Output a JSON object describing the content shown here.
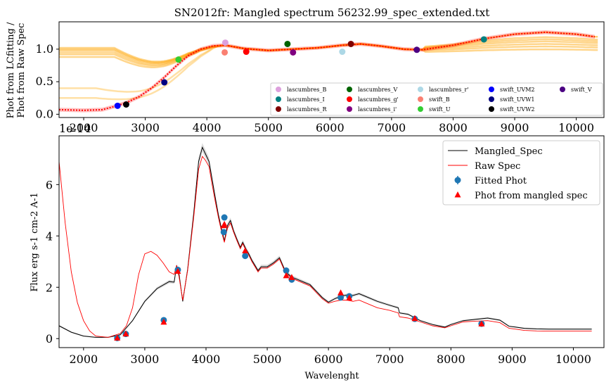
{
  "title": "SN2012fr: Mangled spectrum 56232.99_spec_extended.txt",
  "offset_text": "1e-14",
  "top_panel": {
    "ylabel_line1": "Phot from LCfitting /",
    "ylabel_line2": "Phot from Raw Spec",
    "yticks": [
      "0.0",
      "0.5",
      "1.0"
    ],
    "xticks": [
      "2000",
      "3000",
      "4000",
      "5000",
      "6000",
      "7000",
      "8000",
      "9000",
      "10000"
    ],
    "legend": [
      {
        "label": "lascumbres_B",
        "color": "#dda0dd"
      },
      {
        "label": "lascumbres_I",
        "color": "#008080"
      },
      {
        "label": "lascumbres_R",
        "color": "#800000"
      },
      {
        "label": "lascumbres_V",
        "color": "#006400"
      },
      {
        "label": "lascumbres_g'",
        "color": "#ff0000"
      },
      {
        "label": "lascumbres_i'",
        "color": "#800080"
      },
      {
        "label": "lascumbres_r'",
        "color": "#add8e6"
      },
      {
        "label": "swift_B",
        "color": "#fa8072"
      },
      {
        "label": "swift_U",
        "color": "#32cd32"
      },
      {
        "label": "swift_UVM2",
        "color": "#0000ff"
      },
      {
        "label": "swift_UVW1",
        "color": "#000080"
      },
      {
        "label": "swift_UVW2",
        "color": "#000000"
      },
      {
        "label": "swift_V",
        "color": "#4b0082"
      }
    ]
  },
  "bottom_panel": {
    "ylabel": "Flux erg s-1 cm-2 A-1",
    "xlabel": "Wavelenght",
    "yticks": [
      "0",
      "2",
      "4",
      "6"
    ],
    "xticks": [
      "2000",
      "3000",
      "4000",
      "5000",
      "6000",
      "7000",
      "8000",
      "9000",
      "10000"
    ],
    "legend": [
      {
        "label": "Mangled_Spec",
        "color": "#000000"
      },
      {
        "label": "Raw Spec",
        "color": "#ff0000"
      },
      {
        "label": "Fitted Phot",
        "color": "#1f77b4"
      },
      {
        "label": "Phot from mangled spec",
        "color": "#ff0000"
      }
    ]
  },
  "chart_data": [
    {
      "type": "scatter",
      "title": "SN2012fr: Mangled spectrum 56232.99_spec_extended.txt",
      "xlabel": "",
      "ylabel": "Phot from LCfitting / Phot from Raw Spec",
      "xlim": [
        1600,
        10450
      ],
      "ylim": [
        -0.05,
        1.42
      ],
      "grid": false,
      "legend_position": "lower-right",
      "series": [
        {
          "name": "swift_UVM2",
          "color": "#0000ff",
          "x": [
            2550
          ],
          "y": [
            0.13
          ]
        },
        {
          "name": "swift_UVW2",
          "color": "#000000",
          "x": [
            2690
          ],
          "y": [
            0.15
          ]
        },
        {
          "name": "swift_UVW1",
          "color": "#000080",
          "x": [
            3310
          ],
          "y": [
            0.49
          ]
        },
        {
          "name": "swift_U",
          "color": "#32cd32",
          "x": [
            3540
          ],
          "y": [
            0.84
          ]
        },
        {
          "name": "swift_B",
          "color": "#fa8072",
          "x": [
            4290
          ],
          "y": [
            0.95
          ]
        },
        {
          "name": "lascumbres_B",
          "color": "#dda0dd",
          "x": [
            4300
          ],
          "y": [
            1.1
          ]
        },
        {
          "name": "lascumbres_g'",
          "color": "#ff0000",
          "x": [
            4640
          ],
          "y": [
            0.96
          ]
        },
        {
          "name": "lascumbres_V",
          "color": "#006400",
          "x": [
            5310
          ],
          "y": [
            1.08
          ]
        },
        {
          "name": "lascumbres_i'",
          "color": "#800080",
          "x": [
            5400
          ],
          "y": [
            0.95
          ]
        },
        {
          "name": "lascumbres_r'",
          "color": "#add8e6",
          "x": [
            6200
          ],
          "y": [
            0.96
          ]
        },
        {
          "name": "lascumbres_R",
          "color": "#800000",
          "x": [
            6340
          ],
          "y": [
            1.08
          ]
        },
        {
          "name": "swift_V",
          "color": "#4b0082",
          "x": [
            7410
          ],
          "y": [
            0.99
          ]
        },
        {
          "name": "lascumbres_I",
          "color": "#008080",
          "x": [
            8500
          ],
          "y": [
            1.15
          ]
        }
      ],
      "fit_curve": {
        "x": [
          1600,
          2000,
          2300,
          2500,
          2700,
          2900,
          3100,
          3300,
          3500,
          3700,
          3900,
          4100,
          4300,
          4600,
          5000,
          5400,
          5800,
          6200,
          6500,
          6800,
          7200,
          7500,
          8000,
          8500,
          9000,
          9500,
          10000,
          10300
        ],
        "y": [
          0.07,
          0.06,
          0.07,
          0.12,
          0.18,
          0.27,
          0.4,
          0.56,
          0.74,
          0.9,
          1.0,
          1.05,
          1.06,
          1.01,
          0.98,
          1.0,
          1.02,
          1.06,
          1.08,
          1.05,
          1.0,
          0.99,
          1.06,
          1.16,
          1.23,
          1.26,
          1.23,
          1.19
        ]
      }
    },
    {
      "type": "line",
      "xlabel": "Wavelenght",
      "ylabel": "Flux erg s-1 cm-2 A-1",
      "offset_text": "1e-14",
      "xlim": [
        1600,
        10500
      ],
      "ylim": [
        -0.35,
        7.9
      ],
      "grid": false,
      "legend_position": "top-right",
      "series": [
        {
          "name": "Mangled_Spec",
          "color": "#000000",
          "x": [
            1600,
            1800,
            2000,
            2200,
            2400,
            2600,
            2800,
            3000,
            3200,
            3400,
            3480,
            3520,
            3560,
            3620,
            3700,
            3800,
            3880,
            3940,
            3990,
            4050,
            4100,
            4150,
            4200,
            4250,
            4300,
            4350,
            4400,
            4450,
            4500,
            4560,
            4600,
            4650,
            4700,
            4750,
            4800,
            4850,
            4900,
            5000,
            5100,
            5200,
            5300,
            5400,
            5500,
            5600,
            5700,
            5800,
            5900,
            6000,
            6100,
            6200,
            6300,
            6400,
            6500,
            6600,
            6800,
            7000,
            7140,
            7160,
            7300,
            7500,
            7700,
            7900,
            8000,
            8200,
            8400,
            8600,
            8800,
            8950,
            9050,
            9200,
            9400,
            9600,
            9800,
            10000,
            10300
          ],
          "y": [
            0.5,
            0.25,
            0.1,
            0.05,
            0.05,
            0.15,
            0.7,
            1.45,
            1.95,
            2.22,
            2.2,
            2.85,
            2.5,
            1.45,
            2.7,
            4.9,
            6.9,
            7.45,
            7.2,
            6.9,
            6.2,
            5.5,
            4.85,
            4.3,
            3.8,
            4.4,
            4.6,
            4.2,
            3.9,
            3.55,
            3.75,
            3.5,
            3.3,
            3.05,
            2.85,
            2.65,
            2.8,
            2.8,
            2.95,
            3.15,
            2.6,
            2.4,
            2.3,
            2.2,
            2.1,
            1.85,
            1.6,
            1.42,
            1.55,
            1.65,
            1.7,
            1.68,
            1.75,
            1.65,
            1.45,
            1.3,
            1.2,
            1.0,
            0.95,
            0.7,
            0.55,
            0.45,
            0.55,
            0.7,
            0.75,
            0.8,
            0.72,
            0.48,
            0.45,
            0.4,
            0.38,
            0.37,
            0.37,
            0.37,
            0.37
          ]
        },
        {
          "name": "Raw Spec",
          "color": "#ff0000",
          "x": [
            1600,
            1700,
            1800,
            1900,
            2000,
            2100,
            2200,
            2400,
            2600,
            2700,
            2800,
            2900,
            3000,
            3100,
            3200,
            3300,
            3400,
            3480,
            3520,
            3560,
            3620,
            3700,
            3800,
            3880,
            3940,
            3990,
            4050,
            4100,
            4150,
            4200,
            4250,
            4300,
            4350,
            4400,
            4450,
            4500,
            4560,
            4600,
            4650,
            4700,
            4750,
            4800,
            4850,
            4900,
            5000,
            5100,
            5200,
            5300,
            5400,
            5500,
            5600,
            5700,
            5800,
            5900,
            6000,
            6100,
            6200,
            6300,
            6400,
            6500,
            6600,
            6800,
            7000,
            7140,
            7160,
            7300,
            7500,
            7700,
            7900,
            8000,
            8200,
            8400,
            8600,
            8800,
            8950,
            9050,
            9200,
            9400,
            9600,
            9800,
            10000,
            10300
          ],
          "y": [
            6.9,
            4.5,
            2.6,
            1.4,
            0.7,
            0.3,
            0.1,
            0.05,
            0.2,
            0.5,
            1.2,
            2.5,
            3.3,
            3.4,
            3.25,
            2.95,
            2.6,
            2.5,
            2.85,
            2.4,
            1.5,
            2.65,
            4.75,
            6.6,
            7.1,
            6.95,
            6.7,
            6.0,
            5.35,
            4.75,
            4.2,
            3.75,
            4.3,
            4.5,
            4.15,
            3.85,
            3.5,
            3.7,
            3.45,
            3.25,
            3.0,
            2.8,
            2.6,
            2.75,
            2.75,
            2.9,
            3.1,
            2.55,
            2.35,
            2.25,
            2.15,
            2.05,
            1.8,
            1.55,
            1.38,
            1.45,
            1.5,
            1.5,
            1.45,
            1.5,
            1.4,
            1.2,
            1.1,
            1.0,
            0.85,
            0.8,
            0.65,
            0.5,
            0.42,
            0.5,
            0.65,
            0.68,
            0.7,
            0.62,
            0.4,
            0.37,
            0.32,
            0.3,
            0.29,
            0.29,
            0.29,
            0.29
          ]
        },
        {
          "name": "Fitted Phot",
          "color": "#1f77b4",
          "x": [
            2550,
            2690,
            3310,
            3540,
            4290,
            4300,
            4640,
            5310,
            5400,
            6200,
            6340,
            7410,
            8500
          ],
          "y": [
            0.02,
            0.18,
            0.72,
            2.68,
            4.15,
            4.72,
            3.22,
            2.65,
            2.3,
            1.6,
            1.65,
            0.77,
            0.58
          ]
        },
        {
          "name": "Phot from mangled spec",
          "color": "#ff0000",
          "x": [
            2550,
            2690,
            3310,
            3540,
            4290,
            4300,
            4640,
            5310,
            5400,
            6200,
            6340,
            7410,
            8500
          ],
          "y": [
            0.02,
            0.18,
            0.64,
            2.62,
            4.4,
            4.45,
            3.42,
            2.45,
            2.38,
            1.78,
            1.58,
            0.78,
            0.57
          ]
        }
      ]
    }
  ]
}
